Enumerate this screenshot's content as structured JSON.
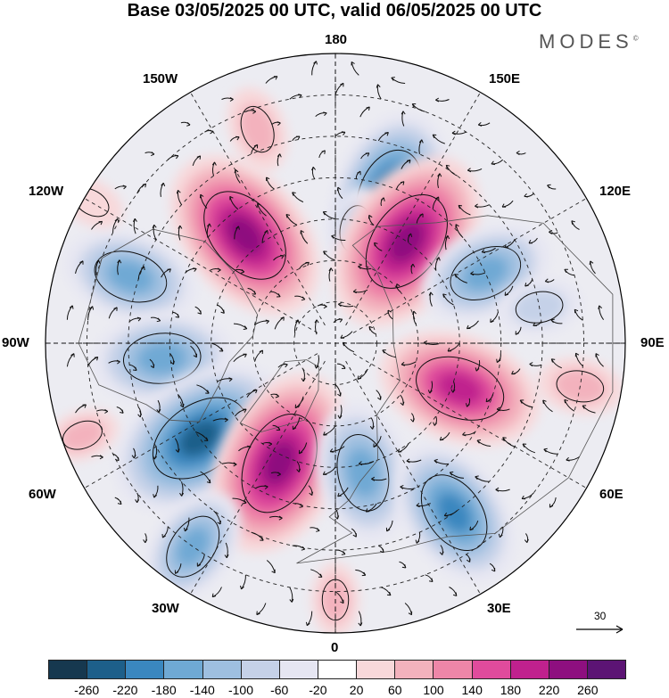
{
  "title": "Base 03/05/2025 00 UTC, valid 06/05/2025 00 UTC",
  "brand": "MODES",
  "brand_mark": "©",
  "longitude_labels": {
    "n180": "180",
    "w150": "150W",
    "e150": "150E",
    "w120": "120W",
    "e120": "120E",
    "w90": "90W",
    "e90": "90E",
    "w60": "60W",
    "e60": "60E",
    "w30": "30W",
    "e30": "30E",
    "s0": "0"
  },
  "reference_vector": {
    "label": "30",
    "icon": "arrow-right-icon"
  },
  "colorbar": {
    "colors": [
      "#16384f",
      "#1d5f8a",
      "#3a87bf",
      "#6fa9d4",
      "#9ebfe0",
      "#c5d1e8",
      "#e6e6f2",
      "#ffffff",
      "#f8d8da",
      "#f3b2bd",
      "#ee86a8",
      "#e04b9c",
      "#c0218e",
      "#8e0f7f",
      "#5c1474"
    ],
    "ticks": [
      "-260",
      "-220",
      "-180",
      "-140",
      "-100",
      "-60",
      "-20",
      "20",
      "60",
      "100",
      "140",
      "180",
      "220",
      "260"
    ]
  },
  "anomalies": [
    {
      "lon": 160,
      "lat": 52,
      "value": -200
    },
    {
      "lon": 170,
      "lat": 62,
      "value": -60
    },
    {
      "lon": -140,
      "lat": 56,
      "value": 220
    },
    {
      "lon": -160,
      "lat": 35,
      "value": 60
    },
    {
      "lon": 145,
      "lat": 60,
      "value": 230
    },
    {
      "lon": 115,
      "lat": 50,
      "value": -140
    },
    {
      "lon": 100,
      "lat": 40,
      "value": -60
    },
    {
      "lon": -108,
      "lat": 38,
      "value": -140
    },
    {
      "lon": -85,
      "lat": 48,
      "value": -150
    },
    {
      "lon": -55,
      "lat": 50,
      "value": -230
    },
    {
      "lon": -25,
      "lat": 58,
      "value": 230
    },
    {
      "lon": -35,
      "lat": 30,
      "value": -120
    },
    {
      "lon": 12,
      "lat": 58,
      "value": -150
    },
    {
      "lon": 35,
      "lat": 40,
      "value": -170
    },
    {
      "lon": 70,
      "lat": 58,
      "value": 190
    },
    {
      "lon": 80,
      "lat": 30,
      "value": 60
    },
    {
      "lon": -70,
      "lat": 25,
      "value": 40
    },
    {
      "lon": 0,
      "lat": 28,
      "value": 40
    },
    {
      "lon": -120,
      "lat": 22,
      "value": 30
    }
  ]
}
